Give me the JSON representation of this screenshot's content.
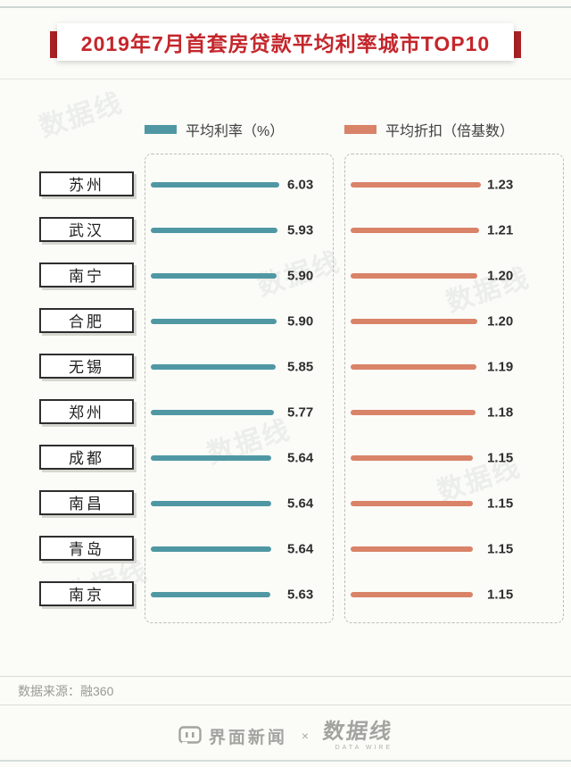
{
  "header": {
    "title": "2019年7月首套房贷款平均利率城市TOP10"
  },
  "legend": {
    "rate": "平均利率（%）",
    "discount": "平均折扣（倍基数）"
  },
  "chart_data": {
    "type": "bar",
    "orientation": "horizontal",
    "title": "2019年7月首套房贷款平均利率城市TOP10",
    "categories": [
      "苏州",
      "武汉",
      "南宁",
      "合肥",
      "无锡",
      "郑州",
      "成都",
      "南昌",
      "青岛",
      "南京"
    ],
    "series": [
      {
        "name": "平均利率（%）",
        "color": "#4f98a3",
        "values": [
          6.03,
          5.93,
          5.9,
          5.9,
          5.85,
          5.77,
          5.64,
          5.64,
          5.64,
          5.63
        ]
      },
      {
        "name": "平均折扣（倍基数）",
        "color": "#d98368",
        "values": [
          1.23,
          1.21,
          1.2,
          1.2,
          1.19,
          1.18,
          1.15,
          1.15,
          1.15,
          1.15
        ]
      }
    ],
    "value_labels": true,
    "grid": false,
    "legend_position": "top"
  },
  "source": {
    "label": "数据来源：融360"
  },
  "footer": {
    "jiemian": "界面新闻",
    "times": "×",
    "datawire": "数据线",
    "datawire_sub": "DATA WIRE"
  },
  "watermark": "数据线",
  "colors": {
    "rate_bar": "#4f98a3",
    "discount_bar": "#d98368",
    "title_red": "#c4262b",
    "ribbon_red": "#a92226"
  }
}
